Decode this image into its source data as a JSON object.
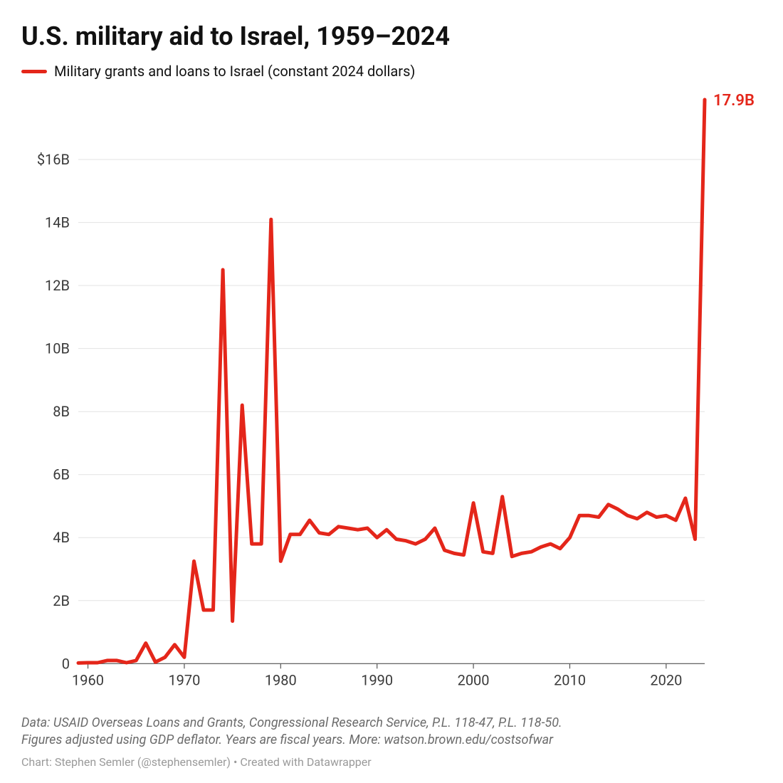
{
  "title": "U.S. military aid to Israel, 1959–2024",
  "legend": {
    "label": "Military grants and loans to Israel (constant 2024 dollars)",
    "color": "#e4261a"
  },
  "chart": {
    "type": "line",
    "background_color": "#ffffff",
    "grid_color": "#e3e3e3",
    "axis_color": "#555555",
    "axis_label_color": "#3a3a3a",
    "axis_fontsize": 20,
    "line_color": "#e4261a",
    "line_width": 5,
    "xlim": [
      1959,
      2024
    ],
    "ylim": [
      -0.4,
      17.9
    ],
    "x_ticks": [
      1960,
      1970,
      1980,
      1990,
      2000,
      2010,
      2020
    ],
    "y_ticks": [
      0,
      2,
      4,
      6,
      8,
      10,
      12,
      14,
      16
    ],
    "y_tick_labels": [
      "0",
      "2B",
      "4B",
      "6B",
      "8B",
      "10B",
      "12B",
      "14B",
      "$16B"
    ],
    "end_label": "17.9B",
    "end_label_color": "#e4261a",
    "end_label_fontsize": 22,
    "series": [
      {
        "year": 1959,
        "value": 0.02
      },
      {
        "year": 1960,
        "value": 0.03
      },
      {
        "year": 1961,
        "value": 0.03
      },
      {
        "year": 1962,
        "value": 0.1
      },
      {
        "year": 1963,
        "value": 0.1
      },
      {
        "year": 1964,
        "value": 0.03
      },
      {
        "year": 1965,
        "value": 0.1
      },
      {
        "year": 1966,
        "value": 0.65
      },
      {
        "year": 1967,
        "value": 0.05
      },
      {
        "year": 1968,
        "value": 0.2
      },
      {
        "year": 1969,
        "value": 0.6
      },
      {
        "year": 1970,
        "value": 0.2
      },
      {
        "year": 1971,
        "value": 3.25
      },
      {
        "year": 1972,
        "value": 1.7
      },
      {
        "year": 1973,
        "value": 1.7
      },
      {
        "year": 1974,
        "value": 12.5
      },
      {
        "year": 1975,
        "value": 1.35
      },
      {
        "year": 1976,
        "value": 8.2
      },
      {
        "year": 1977,
        "value": 3.8
      },
      {
        "year": 1978,
        "value": 3.8
      },
      {
        "year": 1979,
        "value": 14.1
      },
      {
        "year": 1980,
        "value": 3.25
      },
      {
        "year": 1981,
        "value": 4.1
      },
      {
        "year": 1982,
        "value": 4.1
      },
      {
        "year": 1983,
        "value": 4.55
      },
      {
        "year": 1984,
        "value": 4.15
      },
      {
        "year": 1985,
        "value": 4.1
      },
      {
        "year": 1986,
        "value": 4.35
      },
      {
        "year": 1987,
        "value": 4.3
      },
      {
        "year": 1988,
        "value": 4.25
      },
      {
        "year": 1989,
        "value": 4.3
      },
      {
        "year": 1990,
        "value": 4.0
      },
      {
        "year": 1991,
        "value": 4.25
      },
      {
        "year": 1992,
        "value": 3.95
      },
      {
        "year": 1993,
        "value": 3.9
      },
      {
        "year": 1994,
        "value": 3.8
      },
      {
        "year": 1995,
        "value": 3.95
      },
      {
        "year": 1996,
        "value": 4.3
      },
      {
        "year": 1997,
        "value": 3.6
      },
      {
        "year": 1998,
        "value": 3.5
      },
      {
        "year": 1999,
        "value": 3.45
      },
      {
        "year": 2000,
        "value": 5.1
      },
      {
        "year": 2001,
        "value": 3.55
      },
      {
        "year": 2002,
        "value": 3.5
      },
      {
        "year": 2003,
        "value": 5.3
      },
      {
        "year": 2004,
        "value": 3.4
      },
      {
        "year": 2005,
        "value": 3.5
      },
      {
        "year": 2006,
        "value": 3.55
      },
      {
        "year": 2007,
        "value": 3.7
      },
      {
        "year": 2008,
        "value": 3.8
      },
      {
        "year": 2009,
        "value": 3.65
      },
      {
        "year": 2010,
        "value": 4.0
      },
      {
        "year": 2011,
        "value": 4.7
      },
      {
        "year": 2012,
        "value": 4.7
      },
      {
        "year": 2013,
        "value": 4.65
      },
      {
        "year": 2014,
        "value": 5.05
      },
      {
        "year": 2015,
        "value": 4.9
      },
      {
        "year": 2016,
        "value": 4.7
      },
      {
        "year": 2017,
        "value": 4.6
      },
      {
        "year": 2018,
        "value": 4.8
      },
      {
        "year": 2019,
        "value": 4.65
      },
      {
        "year": 2020,
        "value": 4.7
      },
      {
        "year": 2021,
        "value": 4.55
      },
      {
        "year": 2022,
        "value": 5.25
      },
      {
        "year": 2023,
        "value": 3.95
      },
      {
        "year": 2024,
        "value": 17.9
      }
    ]
  },
  "notes_line1": "Data: USAID Overseas Loans and Grants, Congressional Research Service, P.L. 118-47, P.L. 118-50.",
  "notes_line2": "Figures adjusted using GDP deflator. Years are fiscal years. More: watson.brown.edu/costsofwar",
  "credit": "Chart: Stephen Semler (@stephensemler) • Created with Datawrapper"
}
